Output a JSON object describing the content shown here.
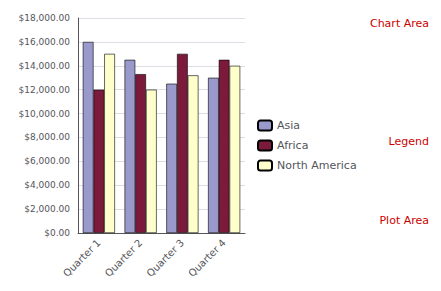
{
  "chart_data": {
    "type": "bar",
    "categories": [
      "Quarter 1",
      "Quarter 2",
      "Quarter 3",
      "Quarter 4"
    ],
    "series": [
      {
        "name": "Asia",
        "color": "#9999cc",
        "values": [
          16000,
          14500,
          12500,
          13000
        ]
      },
      {
        "name": "Africa",
        "color": "#7b1a3b",
        "values": [
          12000,
          13300,
          15000,
          14500
        ]
      },
      {
        "name": "North America",
        "color": "#ffffcc",
        "values": [
          15000,
          12000,
          13200,
          14000
        ]
      }
    ],
    "ylim": [
      0,
      18000
    ],
    "yticks": [
      {
        "value": 0,
        "label": "$0.00"
      },
      {
        "value": 2000,
        "label": "$2,000.00"
      },
      {
        "value": 4000,
        "label": "$4,000.00"
      },
      {
        "value": 6000,
        "label": "$6,000.00"
      },
      {
        "value": 8000,
        "label": "$8,000.00"
      },
      {
        "value": 10000,
        "label": "$10,000.00"
      },
      {
        "value": 12000,
        "label": "$12,000.00"
      },
      {
        "value": 14000,
        "label": "$14,000.00"
      },
      {
        "value": 16000,
        "label": "$16,000.00"
      },
      {
        "value": 18000,
        "label": "$18,000.00"
      }
    ],
    "grid": true,
    "legend": "right",
    "annotations": [
      {
        "text": "Chart Area",
        "color": "#cc0000"
      },
      {
        "text": "Legend",
        "color": "#cc0000"
      },
      {
        "text": "Plot Area",
        "color": "#cc0000"
      }
    ]
  }
}
